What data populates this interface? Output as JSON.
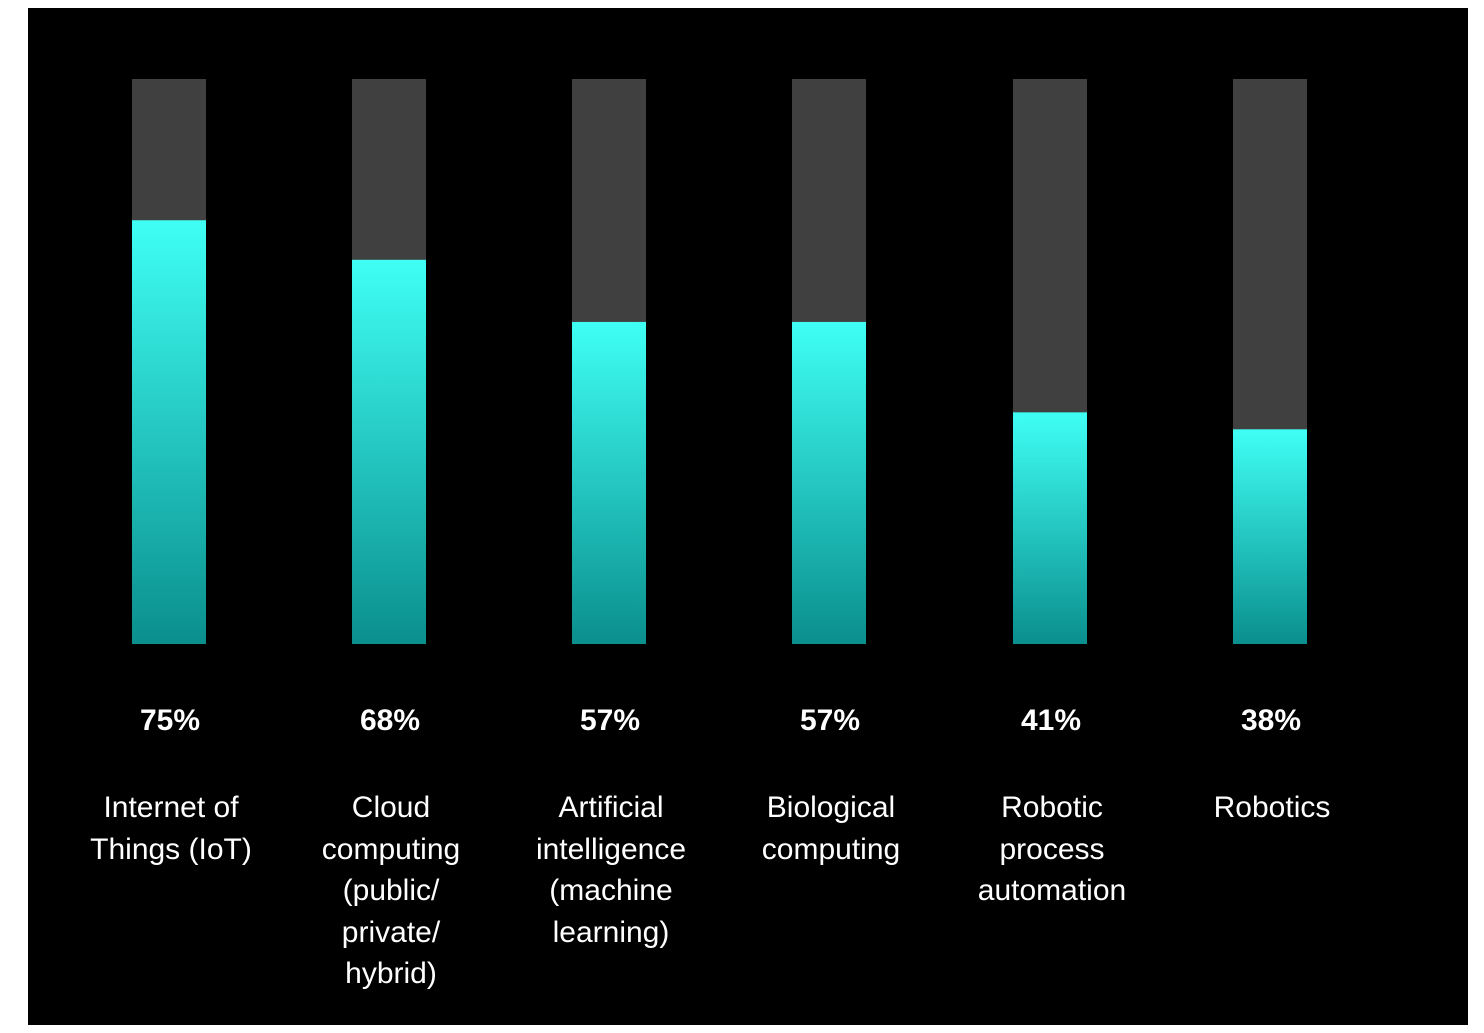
{
  "chart_data": {
    "type": "bar",
    "categories": [
      "Internet of\nThings (IoT)",
      "Cloud\ncomputing\n(public/\nprivate/\nhybrid)",
      "Artificial\nintelligence\n(machine\nlearning)",
      "Biological\ncomputing",
      "Robotic\nprocess\nautomation",
      "Robotics"
    ],
    "values": [
      75,
      68,
      57,
      57,
      41,
      38
    ],
    "value_labels": [
      "75%",
      "68%",
      "57%",
      "57%",
      "41%",
      "38%"
    ],
    "ylim": [
      0,
      100
    ],
    "grid": false,
    "colors": {
      "background": "#000000",
      "track": "#404040",
      "fill_top": "#3ffff5",
      "fill_bottom": "#0a8f8d",
      "text": "#ffffff"
    }
  }
}
